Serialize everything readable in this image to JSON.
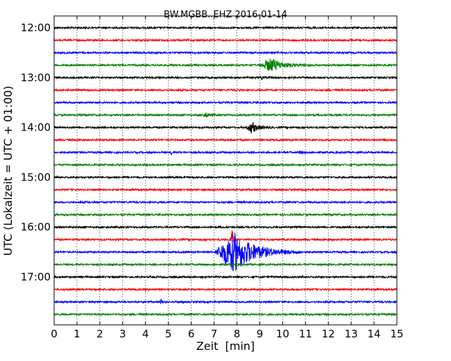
{
  "chart_data": {
    "type": "line",
    "title": "BW.MGBB..EHZ 2016-01-14",
    "xlabel": "Zeit  [min]",
    "ylabel": "UTC (Lokalzeit = UTC + 01:00)",
    "xlim": [
      0,
      15
    ],
    "x_ticks": [
      "0",
      "1",
      "2",
      "3",
      "4",
      "5",
      "6",
      "7",
      "8",
      "9",
      "10",
      "11",
      "12",
      "13",
      "14",
      "15"
    ],
    "y_tick_labels": [
      "12:00",
      "13:00",
      "14:00",
      "15:00",
      "16:00",
      "17:00"
    ],
    "grid": "vertical dotted",
    "row_interval_min": 15,
    "colors": [
      "#000000",
      "#ff0000",
      "#0000ff",
      "#008000"
    ],
    "rows": [
      {
        "start": "12:00",
        "events": []
      },
      {
        "start": "12:15",
        "events": []
      },
      {
        "start": "12:30",
        "events": []
      },
      {
        "start": "12:45",
        "events": [
          {
            "t_min": 9.0,
            "t_end": 10.4,
            "amp": 0.55
          }
        ]
      },
      {
        "start": "13:00",
        "events": [
          {
            "t_min": 9.0,
            "t_end": 9.2,
            "amp": 0.15
          }
        ]
      },
      {
        "start": "13:15",
        "events": []
      },
      {
        "start": "13:30",
        "events": []
      },
      {
        "start": "13:45",
        "events": [
          {
            "t_min": 6.5,
            "t_end": 6.9,
            "amp": 0.2
          }
        ]
      },
      {
        "start": "14:00",
        "events": [
          {
            "t_min": 8.4,
            "t_end": 9.1,
            "amp": 0.45
          }
        ]
      },
      {
        "start": "14:15",
        "events": []
      },
      {
        "start": "14:30",
        "events": [
          {
            "t_min": 5.1,
            "t_end": 5.2,
            "amp": 0.2
          },
          {
            "t_min": 10.7,
            "t_end": 11.0,
            "amp": 0.12
          }
        ]
      },
      {
        "start": "14:45",
        "events": []
      },
      {
        "start": "15:00",
        "events": []
      },
      {
        "start": "15:15",
        "events": []
      },
      {
        "start": "15:30",
        "events": []
      },
      {
        "start": "15:45",
        "events": []
      },
      {
        "start": "16:00",
        "events": []
      },
      {
        "start": "16:15",
        "events": [
          {
            "t_min": 7.7,
            "t_end": 7.9,
            "amp": 1.1
          }
        ]
      },
      {
        "start": "16:30",
        "events": [
          {
            "t_min": 7.0,
            "t_end": 9.5,
            "amp": 1.6
          }
        ]
      },
      {
        "start": "16:45",
        "events": []
      },
      {
        "start": "17:00",
        "events": []
      },
      {
        "start": "17:15",
        "events": []
      },
      {
        "start": "17:30",
        "events": [
          {
            "t_min": 4.6,
            "t_end": 4.8,
            "amp": 0.2
          },
          {
            "t_min": 5.6,
            "t_end": 5.7,
            "amp": 0.12
          }
        ]
      },
      {
        "start": "17:45",
        "events": []
      }
    ]
  }
}
